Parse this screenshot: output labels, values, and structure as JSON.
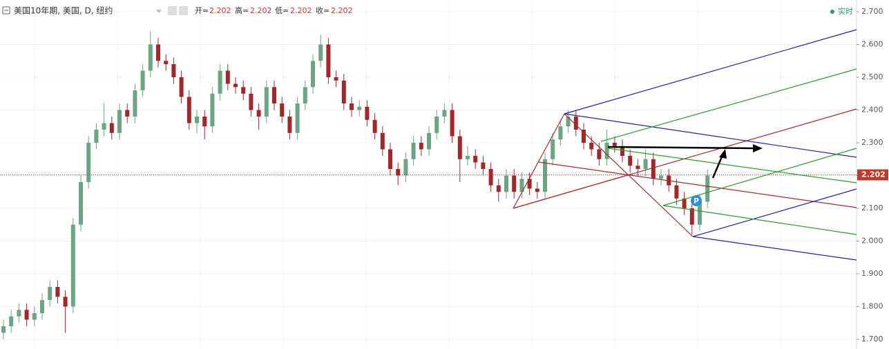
{
  "chart_data": {
    "type": "candlestick",
    "title": "美国10年期, 美国, D, 纽约",
    "header": {
      "open_label": "开=",
      "open": 2.202,
      "high_label": "高=",
      "high": 2.202,
      "low_label": "低=",
      "low": 2.202,
      "close_label": "收=",
      "close": 2.202
    },
    "realtime": "实时",
    "badge": "P",
    "last_price": {
      "value": 2.202,
      "label": "2.202"
    },
    "up_color": "#6ba583",
    "down_color": "#a3262a",
    "ylim": [
      1.7,
      2.7
    ],
    "yticks": [
      {
        "value": 1.7,
        "label": "1.700"
      },
      {
        "value": 1.8,
        "label": "1.800"
      },
      {
        "value": 1.9,
        "label": "1.900"
      },
      {
        "value": 2.0,
        "label": "2.000"
      },
      {
        "value": 2.1,
        "label": "2.100"
      },
      {
        "value": 2.2,
        "label": "2.200"
      },
      {
        "value": 2.3,
        "label": "2.300"
      },
      {
        "value": 2.4,
        "label": "2.400"
      },
      {
        "value": 2.5,
        "label": "2.500"
      },
      {
        "value": 2.6,
        "label": "2.600"
      },
      {
        "value": 2.7,
        "label": "2.700"
      }
    ],
    "open": [
      1.72,
      1.74,
      1.77,
      1.79,
      1.76,
      1.78,
      1.82,
      1.86,
      1.83,
      1.8,
      2.05,
      2.18,
      2.3,
      2.34,
      2.36,
      2.33,
      2.4,
      2.38,
      2.46,
      2.52,
      2.6,
      2.55,
      2.54,
      2.5,
      2.44,
      2.36,
      2.38,
      2.35,
      2.45,
      2.52,
      2.48,
      2.47,
      2.45,
      2.4,
      2.38,
      2.47,
      2.42,
      2.38,
      2.33,
      2.42,
      2.47,
      2.55,
      2.6,
      2.5,
      2.49,
      2.42,
      2.4,
      2.41,
      2.37,
      2.33,
      2.28,
      2.22,
      2.2,
      2.25,
      2.3,
      2.28,
      2.33,
      2.38,
      2.4,
      2.32,
      2.25,
      2.26,
      2.24,
      2.22,
      2.17,
      2.15,
      2.2,
      2.15,
      2.19,
      2.16,
      2.15,
      2.25,
      2.31,
      2.35,
      2.38,
      2.34,
      2.3,
      2.28,
      2.25,
      2.3,
      2.29,
      2.26,
      2.23,
      2.22,
      2.25,
      2.19,
      2.2,
      2.17,
      2.13,
      2.1,
      2.05,
      2.12
    ],
    "high": [
      1.76,
      1.79,
      1.81,
      1.81,
      1.8,
      1.84,
      1.88,
      1.88,
      1.85,
      2.07,
      2.2,
      2.32,
      2.36,
      2.42,
      2.38,
      2.42,
      2.42,
      2.48,
      2.54,
      2.64,
      2.62,
      2.57,
      2.56,
      2.52,
      2.46,
      2.4,
      2.4,
      2.47,
      2.54,
      2.54,
      2.5,
      2.49,
      2.47,
      2.42,
      2.49,
      2.49,
      2.44,
      2.4,
      2.44,
      2.49,
      2.57,
      2.63,
      2.62,
      2.52,
      2.51,
      2.44,
      2.43,
      2.43,
      2.39,
      2.35,
      2.3,
      2.24,
      2.27,
      2.32,
      2.32,
      2.35,
      2.4,
      2.42,
      2.42,
      2.34,
      2.29,
      2.28,
      2.26,
      2.24,
      2.19,
      2.22,
      2.22,
      2.21,
      2.21,
      2.18,
      2.27,
      2.33,
      2.37,
      2.4,
      2.4,
      2.36,
      2.32,
      2.3,
      2.34,
      2.32,
      2.31,
      2.28,
      2.25,
      2.28,
      2.27,
      2.22,
      2.22,
      2.19,
      2.15,
      2.12,
      2.14,
      2.22
    ],
    "low": [
      1.7,
      1.72,
      1.75,
      1.74,
      1.74,
      1.76,
      1.8,
      1.81,
      1.72,
      1.78,
      2.03,
      2.16,
      2.28,
      2.32,
      2.31,
      2.31,
      2.36,
      2.36,
      2.44,
      2.5,
      2.53,
      2.52,
      2.48,
      2.42,
      2.34,
      2.33,
      2.31,
      2.33,
      2.43,
      2.46,
      2.45,
      2.43,
      2.38,
      2.34,
      2.36,
      2.4,
      2.36,
      2.31,
      2.31,
      2.4,
      2.45,
      2.53,
      2.48,
      2.47,
      2.4,
      2.38,
      2.38,
      2.35,
      2.31,
      2.26,
      2.2,
      2.17,
      2.18,
      2.23,
      2.26,
      2.26,
      2.31,
      2.36,
      2.3,
      2.18,
      2.23,
      2.22,
      2.2,
      2.15,
      2.12,
      2.13,
      2.13,
      2.13,
      2.14,
      2.13,
      2.13,
      2.23,
      2.29,
      2.33,
      2.32,
      2.28,
      2.26,
      2.23,
      2.23,
      2.27,
      2.24,
      2.21,
      2.2,
      2.2,
      2.17,
      2.17,
      2.15,
      2.11,
      2.08,
      2.02,
      2.03,
      2.1
    ],
    "close": [
      1.74,
      1.77,
      1.79,
      1.76,
      1.78,
      1.82,
      1.86,
      1.83,
      1.8,
      2.05,
      2.18,
      2.3,
      2.34,
      2.36,
      2.33,
      2.4,
      2.38,
      2.46,
      2.52,
      2.6,
      2.55,
      2.54,
      2.5,
      2.44,
      2.36,
      2.38,
      2.35,
      2.45,
      2.52,
      2.48,
      2.47,
      2.45,
      2.4,
      2.38,
      2.47,
      2.42,
      2.38,
      2.33,
      2.42,
      2.47,
      2.55,
      2.6,
      2.5,
      2.49,
      2.42,
      2.4,
      2.41,
      2.37,
      2.33,
      2.28,
      2.22,
      2.2,
      2.25,
      2.3,
      2.28,
      2.33,
      2.38,
      2.4,
      2.32,
      2.25,
      2.26,
      2.24,
      2.22,
      2.17,
      2.15,
      2.2,
      2.15,
      2.19,
      2.16,
      2.15,
      2.25,
      2.31,
      2.35,
      2.38,
      2.34,
      2.3,
      2.28,
      2.25,
      2.3,
      2.29,
      2.26,
      2.23,
      2.22,
      2.25,
      2.19,
      2.2,
      2.17,
      2.13,
      2.1,
      2.05,
      2.12,
      2.2
    ]
  }
}
